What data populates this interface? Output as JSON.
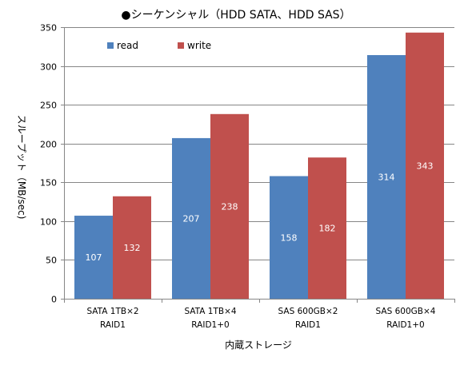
{
  "chart_data": {
    "type": "bar",
    "title": "●シーケンシャル（HDD SATA、HDD SAS）",
    "xlabel": "内蔵ストレージ",
    "ylabel": "スループット（MB/sec)",
    "ylim": [
      0,
      350
    ],
    "yticks": [
      0,
      50,
      100,
      150,
      200,
      250,
      300,
      350
    ],
    "grid": true,
    "legend_position": "top-left",
    "categories": [
      [
        "SATA 1TB×2",
        "RAID1"
      ],
      [
        "SATA 1TB×4",
        "RAID1+0"
      ],
      [
        "SAS 600GB×2",
        "RAID1"
      ],
      [
        "SAS 600GB×4",
        "RAID1+0"
      ]
    ],
    "series": [
      {
        "name": "read",
        "color": "#4F81BD",
        "values": [
          107,
          207,
          158,
          314
        ]
      },
      {
        "name": "write",
        "color": "#C0504D",
        "values": [
          132,
          238,
          182,
          343
        ]
      }
    ]
  }
}
